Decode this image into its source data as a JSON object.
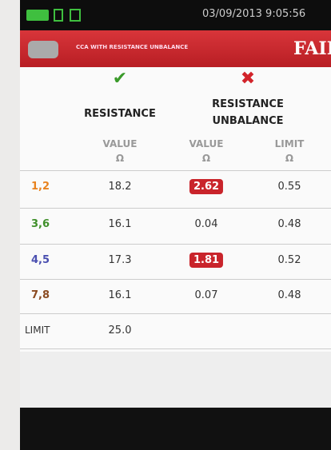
{
  "status_bar": {
    "datetime": "03/09/2013 9:05:56"
  },
  "header": {
    "title": "CCA WITH RESISTANCE UNBALANCE",
    "result": "FAIL"
  },
  "table": {
    "groups": [
      {
        "label": "RESISTANCE",
        "passed": true
      },
      {
        "label": "RESISTANCE UNBALANCE",
        "passed": false
      }
    ],
    "columns": [
      {
        "label": "VALUE",
        "unit": "Ω"
      },
      {
        "label": "VALUE",
        "unit": "Ω"
      },
      {
        "label": "LIMIT",
        "unit": "Ω"
      }
    ],
    "rows": [
      {
        "pair": "1,2",
        "color": "#e8821e",
        "resistance": "18.2",
        "unbalance": "2.62",
        "unbalance_failed": true,
        "limit": "0.55"
      },
      {
        "pair": "3,6",
        "color": "#3f8f2a",
        "resistance": "16.1",
        "unbalance": "0.04",
        "unbalance_failed": false,
        "limit": "0.48"
      },
      {
        "pair": "4,5",
        "color": "#4a4fb0",
        "resistance": "17.3",
        "unbalance": "1.81",
        "unbalance_failed": true,
        "limit": "0.52"
      },
      {
        "pair": "7,8",
        "color": "#8a4a20",
        "resistance": "16.1",
        "unbalance": "0.07",
        "unbalance_failed": false,
        "limit": "0.48"
      }
    ],
    "limit_row": {
      "label": "LIMIT",
      "resistance": "25.0"
    }
  }
}
